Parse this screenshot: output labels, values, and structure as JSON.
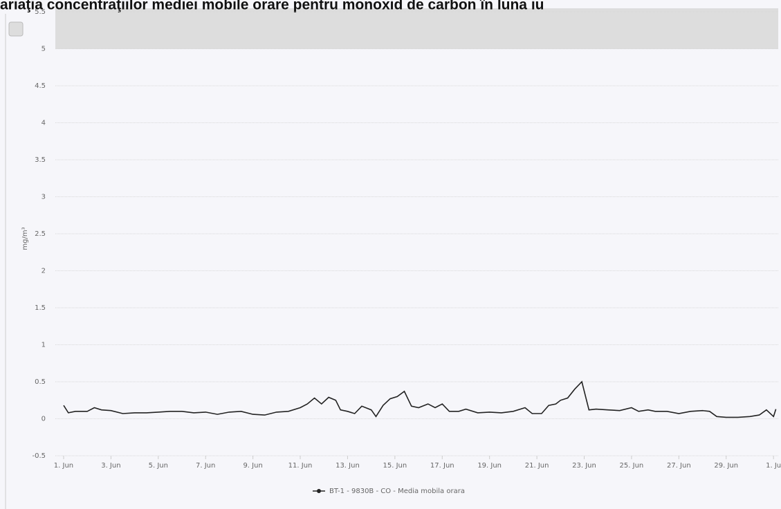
{
  "chart_data": {
    "type": "line",
    "title": "ariaţia concentraţiilor mediei mobile orare pentru monoxid de carbon în luna iu",
    "y_label": "mg/m³",
    "xlim": [
      0.65,
      31.2
    ],
    "xticks": [
      {
        "value": 1,
        "label": "1. Jun"
      },
      {
        "value": 3,
        "label": "3. Jun"
      },
      {
        "value": 5,
        "label": "5. Jun"
      },
      {
        "value": 7,
        "label": "7. Jun"
      },
      {
        "value": 9,
        "label": "9. Jun"
      },
      {
        "value": 11,
        "label": "11. Jun"
      },
      {
        "value": 13,
        "label": "13. Jun"
      },
      {
        "value": 15,
        "label": "15. Jun"
      },
      {
        "value": 17,
        "label": "17. Jun"
      },
      {
        "value": 19,
        "label": "19. Jun"
      },
      {
        "value": 21,
        "label": "21. Jun"
      },
      {
        "value": 23,
        "label": "23. Jun"
      },
      {
        "value": 25,
        "label": "25. Jun"
      },
      {
        "value": 27,
        "label": "27. Jun"
      },
      {
        "value": 29,
        "label": "29. Jun"
      },
      {
        "value": 31,
        "label": "1. Ju"
      }
    ],
    "ylim": [
      -0.5,
      5.5
    ],
    "yticks": [
      -0.5,
      0,
      0.5,
      1,
      1.5,
      2,
      2.5,
      3,
      3.5,
      4,
      4.5,
      5,
      5.5
    ],
    "grid": true,
    "series": [
      {
        "name": "BT-1 - 9830B - CO - Media mobila orara",
        "color": "#222222",
        "x": [
          1,
          1.2,
          1.5,
          2,
          2.3,
          2.6,
          3,
          3.5,
          4,
          4.5,
          5,
          5.5,
          6,
          6.5,
          7,
          7.5,
          8,
          8.5,
          9,
          9.5,
          10,
          10.5,
          11,
          11.3,
          11.6,
          11.9,
          12.2,
          12.5,
          12.7,
          13,
          13.3,
          13.6,
          14,
          14.2,
          14.5,
          14.8,
          15.1,
          15.4,
          15.7,
          16,
          16.4,
          16.7,
          17,
          17.3,
          17.7,
          18,
          18.5,
          19,
          19.5,
          20,
          20.5,
          20.8,
          21.2,
          21.5,
          21.8,
          22,
          22.3,
          22.6,
          22.9,
          23.2,
          23.5,
          24,
          24.5,
          25,
          25.3,
          25.7,
          26,
          26.5,
          27,
          27.5,
          28,
          28.3,
          28.6,
          29,
          29.5,
          30,
          30.4,
          30.7,
          31,
          31.1
        ],
        "values": [
          0.18,
          0.08,
          0.1,
          0.1,
          0.15,
          0.12,
          0.11,
          0.07,
          0.08,
          0.08,
          0.09,
          0.1,
          0.1,
          0.08,
          0.09,
          0.06,
          0.09,
          0.1,
          0.06,
          0.05,
          0.09,
          0.1,
          0.15,
          0.2,
          0.28,
          0.2,
          0.29,
          0.25,
          0.12,
          0.1,
          0.07,
          0.17,
          0.12,
          0.03,
          0.18,
          0.27,
          0.3,
          0.37,
          0.17,
          0.15,
          0.2,
          0.15,
          0.2,
          0.1,
          0.1,
          0.13,
          0.08,
          0.09,
          0.08,
          0.1,
          0.15,
          0.07,
          0.07,
          0.18,
          0.2,
          0.25,
          0.28,
          0.4,
          0.5,
          0.12,
          0.13,
          0.12,
          0.11,
          0.15,
          0.1,
          0.12,
          0.1,
          0.1,
          0.07,
          0.1,
          0.11,
          0.1,
          0.03,
          0.02,
          0.02,
          0.03,
          0.05,
          0.12,
          0.03,
          0.13
        ]
      }
    ]
  }
}
